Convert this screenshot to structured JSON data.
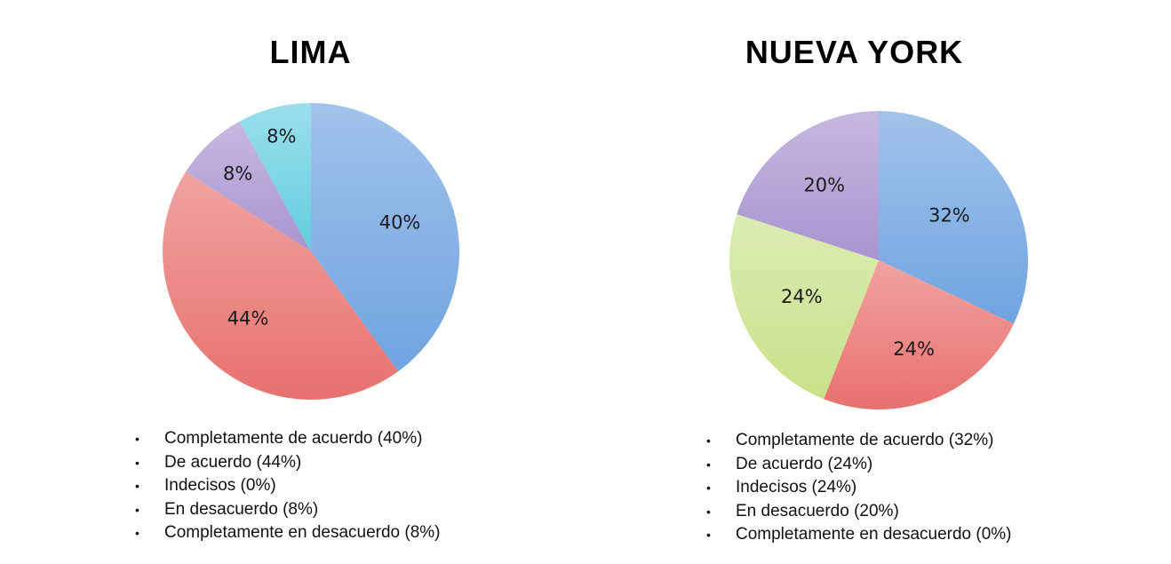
{
  "chart_data": [
    {
      "type": "pie",
      "title": "LIMA",
      "categories": [
        "Completamente de acuerdo",
        "De acuerdo",
        "Indecisos",
        "En desacuerdo",
        "Completamente en desacuerdo"
      ],
      "values": [
        40,
        44,
        0,
        8,
        8
      ],
      "slice_labels": [
        "40%",
        "44%",
        "",
        "8%",
        "8%"
      ],
      "colors": [
        "#6fa3e0",
        "#e8716e",
        "#b9ce63",
        "#a894cf",
        "#63cde0"
      ],
      "legend": [
        "Completamente de acuerdo (40%)",
        "De acuerdo (44%)",
        "Indecisos (0%)",
        "En desacuerdo (8%)",
        "Completamente en desacuerdo (8%)"
      ]
    },
    {
      "type": "pie",
      "title": "NUEVA YORK",
      "categories": [
        "Completamente de acuerdo",
        "De acuerdo",
        "Indecisos",
        "En desacuerdo",
        "Completamente en desacuerdo"
      ],
      "values": [
        32,
        24,
        24,
        20,
        0
      ],
      "slice_labels": [
        "32%",
        "24%",
        "24%",
        "20%",
        ""
      ],
      "colors": [
        "#6fa3e0",
        "#e8716e",
        "#c9e18a",
        "#a894cf",
        "#63cde0"
      ],
      "legend": [
        "Completamente de acuerdo (32%)",
        "De acuerdo (24%)",
        "Indecisos (24%)",
        "En desacuerdo (20%)",
        "Completamente en desacuerdo (0%)"
      ]
    }
  ],
  "legend_bullet": "•"
}
